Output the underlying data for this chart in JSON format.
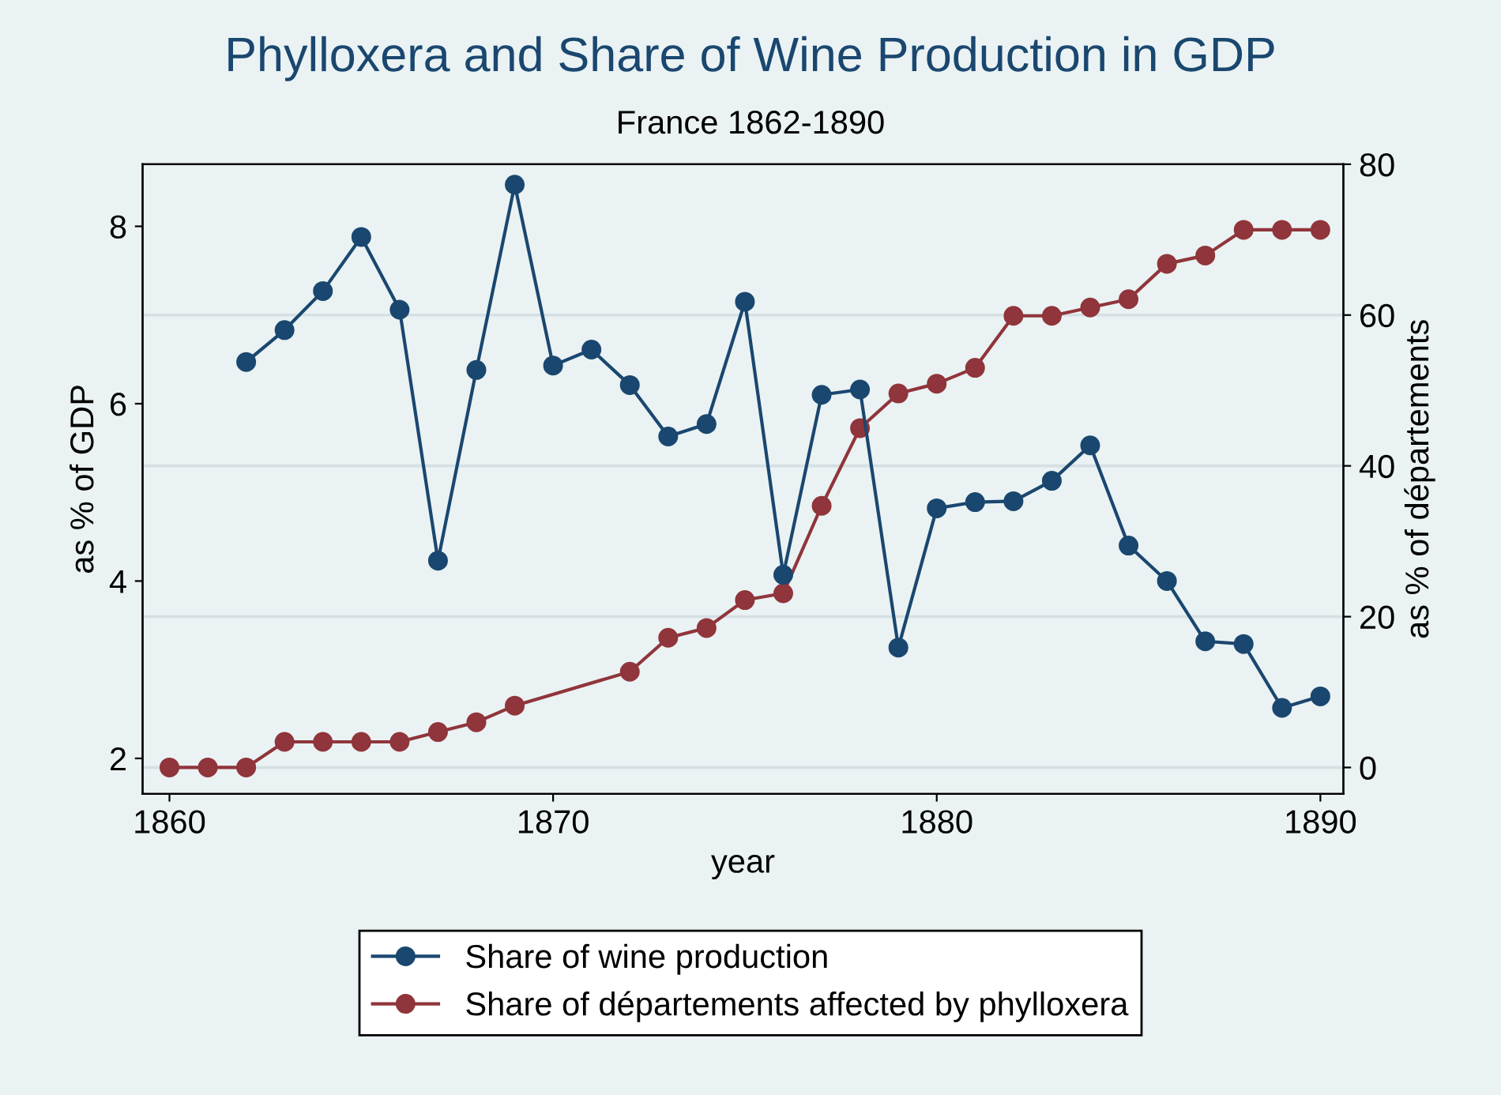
{
  "chart_data": {
    "type": "line",
    "title": "Phylloxera and Share of Wine Production in GDP",
    "subtitle": "France 1862-1890",
    "xlabel": "year",
    "ylabel": "as % of GDP",
    "y2label": "as % of départements",
    "series": [
      {
        "name": "Share of wine production",
        "color": "#1a476f",
        "x": [
          1862,
          1863,
          1864,
          1865,
          1866,
          1867,
          1868,
          1869,
          1870,
          1871,
          1872,
          1873,
          1874,
          1875,
          1876,
          1877,
          1878,
          1879,
          1880,
          1881,
          1882,
          1883,
          1884,
          1885,
          1886,
          1887,
          1888,
          1889,
          1890
        ],
        "values": [
          6.47,
          6.83,
          7.27,
          7.88,
          7.06,
          4.23,
          6.38,
          8.47,
          6.43,
          6.61,
          6.21,
          5.63,
          5.77,
          7.15,
          4.07,
          6.1,
          6.16,
          3.25,
          4.82,
          4.89,
          4.9,
          5.13,
          5.53,
          4.4,
          4.0,
          3.32,
          3.29,
          2.57,
          2.7
        ]
      },
      {
        "name": "Share of départements affected by phylloxera",
        "color": "#90353b",
        "axis": "y2",
        "x": [
          1860,
          1861,
          1862,
          1863,
          1864,
          1865,
          1866,
          1867,
          1868,
          1869,
          1872,
          1873,
          1874,
          1875,
          1876,
          1877,
          1878,
          1879,
          1880,
          1881,
          1882,
          1883,
          1884,
          1885,
          1886,
          1887,
          1888,
          1889,
          1890
        ],
        "values": [
          0,
          0,
          0,
          3.4,
          3.4,
          3.4,
          3.4,
          4.7,
          6.0,
          8.2,
          12.7,
          17.2,
          18.5,
          22.2,
          23.1,
          34.7,
          45.0,
          49.6,
          50.9,
          53.0,
          59.9,
          59.9,
          61.0,
          62.1,
          66.8,
          67.9,
          71.3,
          71.3,
          71.3
        ]
      }
    ],
    "xlim": [
      1859.3,
      1890.6
    ],
    "xticks": [
      1860,
      1870,
      1880,
      1890
    ],
    "ylim": [
      1.6,
      8.7
    ],
    "yticks": [
      2,
      4,
      6,
      8
    ],
    "y2lim": [
      -3.5,
      80
    ],
    "y2ticks": [
      0,
      20,
      40,
      60,
      80
    ],
    "grid": true,
    "legend": "bottom",
    "marker": "circle",
    "line_style": "solid"
  }
}
